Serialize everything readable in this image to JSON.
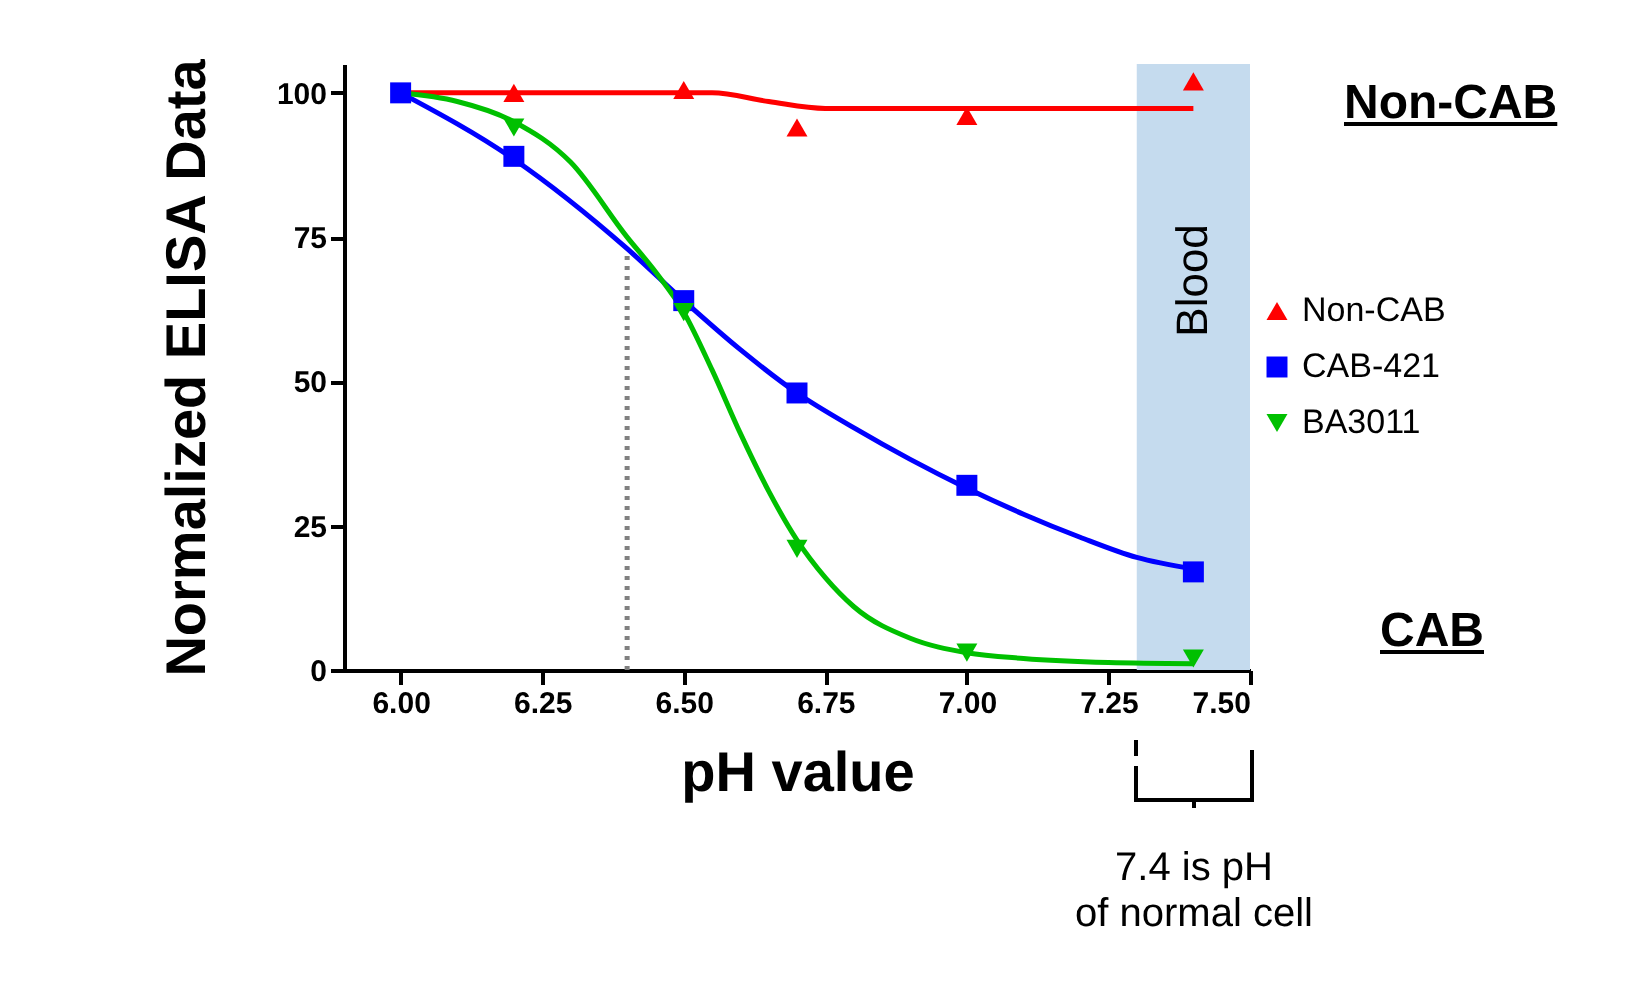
{
  "chart_data": {
    "type": "scatter",
    "xlabel": "pH value",
    "ylabel": "Normalized ELISA Data",
    "xlim": [
      5.9,
      7.5
    ],
    "ylim": [
      0,
      105
    ],
    "xticks": [
      {
        "value": 6,
        "label": "6.00"
      },
      {
        "value": 6.25,
        "label": "6.25"
      },
      {
        "value": 6.5,
        "label": "6.50"
      },
      {
        "value": 6.75,
        "label": "6.75"
      },
      {
        "value": 7,
        "label": "7.00"
      },
      {
        "value": 7.25,
        "label": "7.25"
      },
      {
        "value": 7.5,
        "label": "7.50"
      }
    ],
    "yticks": [
      0,
      25,
      50,
      75,
      100
    ],
    "grid": false,
    "legend": "right",
    "series": [
      {
        "name": "Non-CAB",
        "color": "#ff0000",
        "marker": "triangle",
        "x": [
          6.2,
          6.5,
          6.7,
          7.0,
          7.4
        ],
        "values": [
          100,
          100.5,
          94,
          96,
          102
        ]
      },
      {
        "name": "CAB-421",
        "color": "#0000ff",
        "marker": "square",
        "x": [
          6.0,
          6.2,
          6.5,
          6.7,
          7.0,
          7.4
        ],
        "values": [
          100,
          89,
          64,
          48,
          32,
          17
        ]
      },
      {
        "name": "BA3011",
        "color": "#00c000",
        "marker": "triangle-down",
        "x": [
          6.2,
          6.5,
          6.7,
          7.0,
          7.4
        ],
        "values": [
          94,
          62,
          21,
          3,
          2
        ]
      },
      {
        "type": "line",
        "color": "#ff0000",
        "marker": "none",
        "x": [
          6.0,
          6.4,
          6.55,
          6.65,
          6.75,
          7.0,
          7.4
        ],
        "values": [
          100,
          100,
          100,
          98.5,
          97.3,
          97.3,
          97.3
        ]
      },
      {
        "type": "line",
        "color": "#0000ff",
        "marker": "none",
        "x": [
          6.0,
          6.2,
          6.4,
          6.5,
          6.6,
          6.7,
          6.8,
          6.9,
          7.0,
          7.1,
          7.2,
          7.3,
          7.4
        ],
        "values": [
          100,
          88.5,
          73,
          64,
          55.5,
          48,
          42,
          36.5,
          31.5,
          27,
          23,
          19.5,
          17.5
        ]
      },
      {
        "type": "line",
        "color": "#00c000",
        "marker": "none",
        "x": [
          6.0,
          6.1,
          6.2,
          6.3,
          6.4,
          6.45,
          6.5,
          6.55,
          6.6,
          6.65,
          6.7,
          6.75,
          6.8,
          6.9,
          7.0,
          7.1,
          7.25,
          7.4
        ],
        "values": [
          100,
          98.5,
          95,
          88,
          75,
          69,
          62,
          52,
          41,
          31,
          22.5,
          16,
          11,
          5.5,
          3,
          2,
          1.3,
          1.1
        ]
      },
      {
        "type": "line",
        "color": "#808080",
        "marker": "none",
        "line_style": "dotted",
        "x": [
          6.4,
          6.4
        ],
        "values": [
          0,
          72
        ]
      }
    ],
    "bands": [
      {
        "axis": "x",
        "from": 7.3,
        "to": 7.5,
        "label": "Blood",
        "color": "#c5dbee"
      }
    ],
    "annotations": [
      "Non-CAB",
      "CAB",
      "7.4 is pH\nof normal cell"
    ]
  }
}
